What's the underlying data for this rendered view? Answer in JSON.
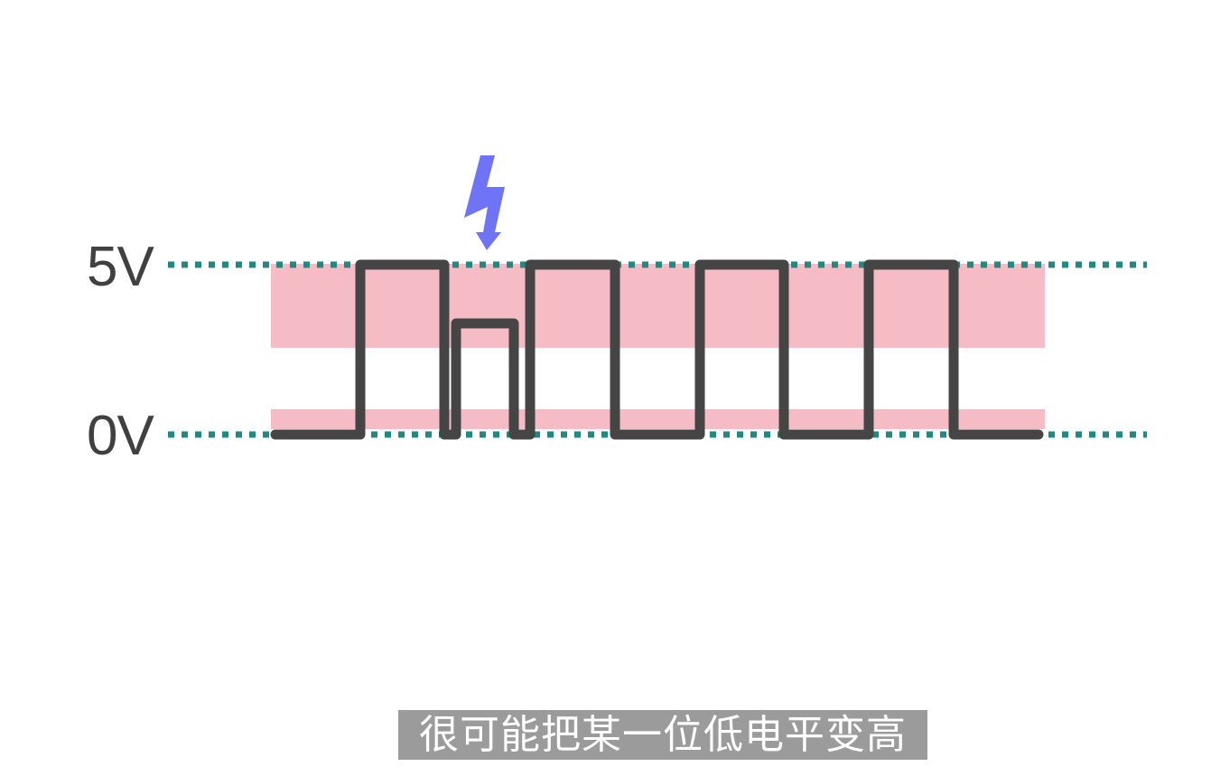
{
  "labels": {
    "high": "5V",
    "low": "0V"
  },
  "subtitle": "很可能把某一位低电平变高",
  "icons": {
    "interference": "lightning-bolt-icon"
  },
  "colors": {
    "threshold_band": "#f5bcc6",
    "reference_line": "#1f8a82",
    "signal_wave": "#454545",
    "lightning": "#6f74f7",
    "subtitle_bg": "#9b9b9b",
    "subtitle_text": "#ffffff"
  }
}
